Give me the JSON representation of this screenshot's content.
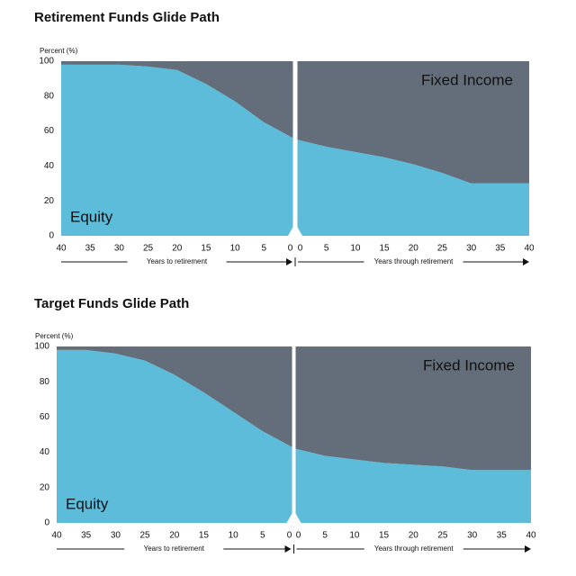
{
  "chart_data": [
    {
      "type": "area",
      "title": "Retirement Funds Glide Path",
      "ylabel": "Percent (%)",
      "x_labels": [
        "Years to retirement",
        "Years through retirement"
      ],
      "categories": [
        40,
        35,
        30,
        25,
        20,
        15,
        10,
        5,
        0,
        0,
        5,
        10,
        15,
        20,
        25,
        30,
        35,
        40
      ],
      "series": [
        {
          "name": "Equity",
          "color": "#5cbcd9",
          "values": [
            98,
            98,
            98,
            97,
            95,
            87,
            77,
            65,
            56,
            55,
            51,
            48,
            45,
            41,
            36,
            30,
            30,
            30
          ]
        },
        {
          "name": "Fixed Income",
          "color": "#646e7a",
          "values": [
            2,
            2,
            2,
            3,
            5,
            13,
            23,
            35,
            44,
            45,
            49,
            52,
            55,
            59,
            64,
            70,
            70,
            70
          ]
        }
      ],
      "ylim": [
        0,
        100
      ],
      "yticks": [
        0,
        20,
        40,
        60,
        80,
        100
      ],
      "stacked": true
    },
    {
      "type": "area",
      "title": "Target Funds Glide Path",
      "ylabel": "Percent (%)",
      "x_labels": [
        "Years to retirement",
        "Years through retirement"
      ],
      "categories": [
        40,
        35,
        30,
        25,
        20,
        15,
        10,
        5,
        0,
        0,
        5,
        10,
        15,
        20,
        25,
        30,
        35,
        40
      ],
      "series": [
        {
          "name": "Equity",
          "color": "#5cbcd9",
          "values": [
            98,
            98,
            96,
            92,
            84,
            74,
            63,
            52,
            43,
            42,
            38,
            36,
            34,
            33,
            32,
            30,
            30,
            30
          ]
        },
        {
          "name": "Fixed Income",
          "color": "#646e7a",
          "values": [
            2,
            2,
            4,
            8,
            16,
            26,
            37,
            48,
            57,
            58,
            62,
            64,
            66,
            67,
            68,
            70,
            70,
            70
          ]
        }
      ],
      "ylim": [
        0,
        100
      ],
      "yticks": [
        0,
        20,
        40,
        60,
        80,
        100
      ],
      "stacked": true
    }
  ]
}
